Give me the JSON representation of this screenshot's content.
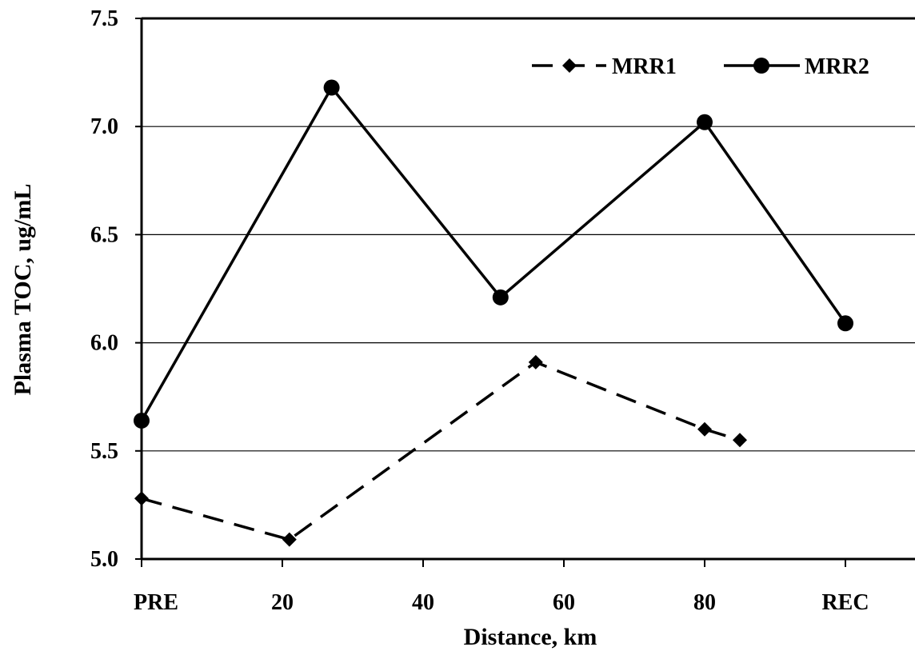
{
  "chart_data": {
    "type": "line",
    "xlabel": "Distance, km",
    "ylabel": "Plasma TOC, ug/mL",
    "xlim": [
      0,
      110
    ],
    "ylim": [
      5.0,
      7.5
    ],
    "x_ticks": [
      {
        "value": 0,
        "label": "PRE"
      },
      {
        "value": 20,
        "label": "20"
      },
      {
        "value": 40,
        "label": "40"
      },
      {
        "value": 60,
        "label": "60"
      },
      {
        "value": 80,
        "label": "80"
      },
      {
        "value": 100,
        "label": "REC"
      }
    ],
    "y_ticks": [
      {
        "value": 5.0,
        "label": "5.0"
      },
      {
        "value": 5.5,
        "label": "5.5"
      },
      {
        "value": 6.0,
        "label": "6.0"
      },
      {
        "value": 6.5,
        "label": "6.5"
      },
      {
        "value": 7.0,
        "label": "7.0"
      },
      {
        "value": 7.5,
        "label": "7.5"
      }
    ],
    "grid": "horizontal",
    "legend_position": "top-right",
    "series": [
      {
        "name": "MRR1",
        "marker": "diamond",
        "line": "dashed",
        "color": "#000000",
        "x": [
          0,
          21,
          56,
          80,
          85
        ],
        "y": [
          5.28,
          5.09,
          5.91,
          5.6,
          5.55
        ]
      },
      {
        "name": "MRR2",
        "marker": "circle",
        "line": "solid",
        "color": "#000000",
        "x": [
          0,
          27,
          51,
          80,
          100
        ],
        "y": [
          5.64,
          7.18,
          6.21,
          7.02,
          6.09
        ]
      }
    ]
  }
}
